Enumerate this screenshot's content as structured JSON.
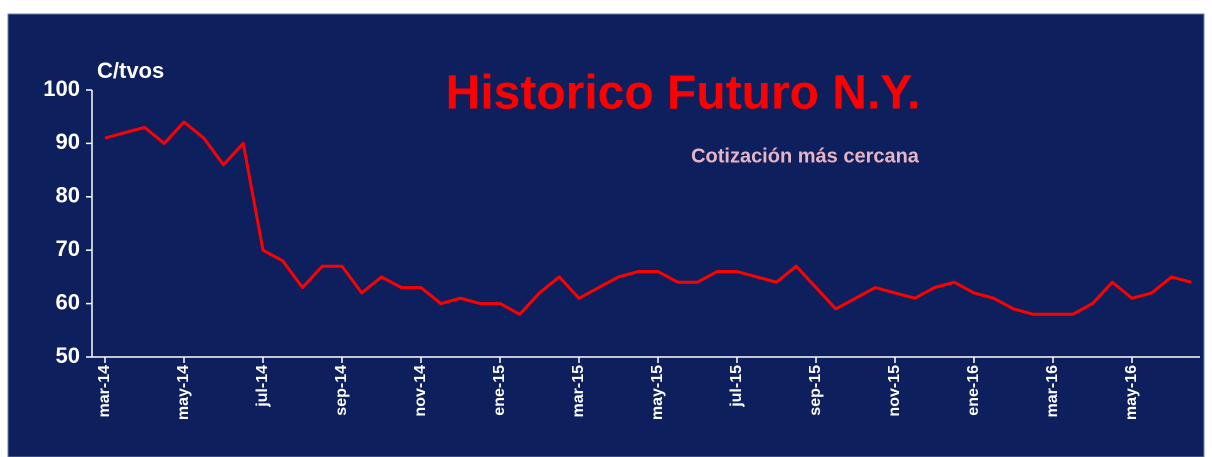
{
  "chart_data": {
    "type": "line",
    "title": "Historico Futuro N.Y.",
    "subtitle": "Cotización más cercana",
    "y_label": "C/tvos",
    "categories": [
      "mar-14",
      null,
      null,
      null,
      "may-14",
      null,
      null,
      null,
      "jul-14",
      null,
      null,
      null,
      "sep-14",
      null,
      null,
      null,
      "nov-14",
      null,
      null,
      null,
      "ene-15",
      null,
      null,
      null,
      "mar-15",
      null,
      null,
      null,
      "may-15",
      null,
      null,
      null,
      "jul-15",
      null,
      null,
      null,
      "sep-15",
      null,
      null,
      null,
      "nov-15",
      null,
      null,
      null,
      "ene-16",
      null,
      null,
      null,
      "mar-16",
      null,
      null,
      null,
      "may-16",
      null,
      null,
      null
    ],
    "values": [
      91,
      92,
      93,
      90,
      94,
      91,
      86,
      90,
      70,
      68,
      63,
      67,
      67,
      62,
      65,
      63,
      63,
      60,
      61,
      60,
      60,
      58,
      62,
      65,
      61,
      63,
      65,
      66,
      66,
      64,
      64,
      66,
      66,
      65,
      64,
      67,
      63,
      59,
      61,
      63,
      62,
      61,
      63,
      64,
      62,
      61,
      59,
      58,
      58,
      58,
      60,
      64,
      61,
      62,
      65,
      64
    ],
    "color": "#ff0000",
    "ylim": [
      50,
      100
    ],
    "yticks": [
      50,
      60,
      70,
      80,
      90,
      100
    ]
  }
}
